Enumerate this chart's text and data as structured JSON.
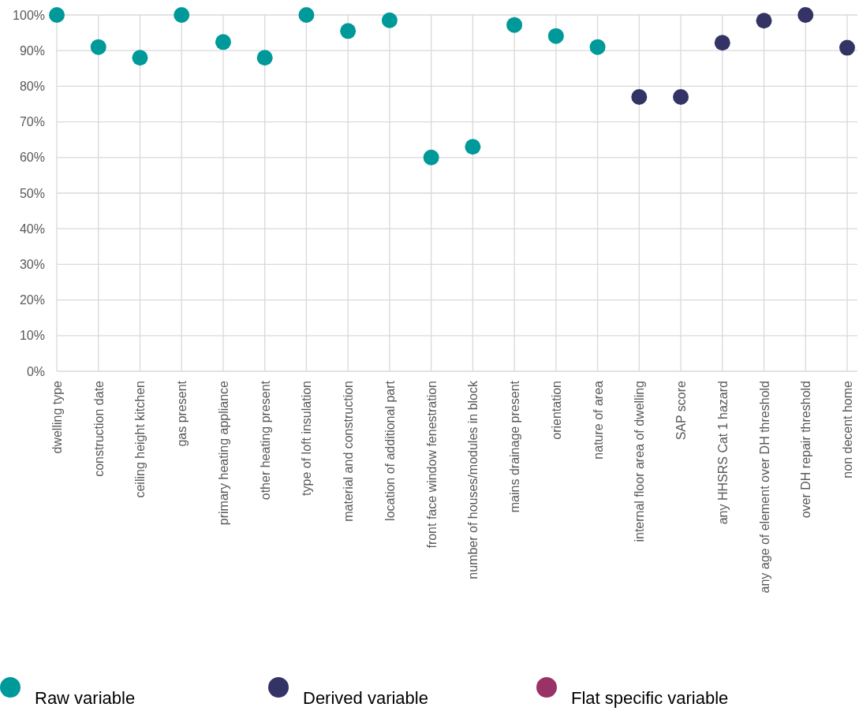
{
  "chart_data": {
    "type": "scatter",
    "categories": [
      "dwelling type",
      "construction date",
      "ceiling height kitchen",
      "gas present",
      "primary heating appliance",
      "other heating present",
      "type of loft insulation",
      "material and construction",
      "location of additional part",
      "front face window fenestration",
      "number of houses/modules in block",
      "mains drainage present",
      "orientation",
      "nature of area",
      "internal floor area of dwelling",
      "SAP score",
      "any HHSRS Cat 1 hazard",
      "any age of element over DH threshold",
      "over DH repair threshold",
      "non decent home"
    ],
    "series": [
      {
        "name": "Raw variable",
        "color": "#009999",
        "values": [
          100,
          91,
          88,
          100,
          92.4,
          88,
          100,
          95.5,
          98.5,
          60,
          63,
          97.2,
          94.1,
          91,
          null,
          null,
          null,
          null,
          null,
          null
        ]
      },
      {
        "name": "Derived variable",
        "color": "#333366",
        "values": [
          null,
          null,
          null,
          null,
          null,
          null,
          null,
          null,
          null,
          null,
          null,
          null,
          null,
          null,
          77,
          77,
          92.2,
          98.4,
          100,
          90.8
        ]
      },
      {
        "name": "Flat specific variable",
        "color": "#993366",
        "values": [
          null,
          null,
          null,
          null,
          null,
          null,
          null,
          null,
          null,
          null,
          null,
          null,
          null,
          null,
          null,
          null,
          null,
          null,
          null,
          null
        ]
      }
    ],
    "ylim": [
      0,
      100
    ],
    "yticks": [
      {
        "value": 0,
        "label": "0%"
      },
      {
        "value": 10,
        "label": "10%"
      },
      {
        "value": 20,
        "label": "20%"
      },
      {
        "value": 30,
        "label": "30%"
      },
      {
        "value": 40,
        "label": "40%"
      },
      {
        "value": 50,
        "label": "50%"
      },
      {
        "value": 60,
        "label": "60%"
      },
      {
        "value": 70,
        "label": "70%"
      },
      {
        "value": 80,
        "label": "80%"
      },
      {
        "value": 90,
        "label": "90%"
      },
      {
        "value": 100,
        "label": "100%"
      }
    ],
    "grid": true,
    "legend": "bottom",
    "marker": "circle"
  }
}
